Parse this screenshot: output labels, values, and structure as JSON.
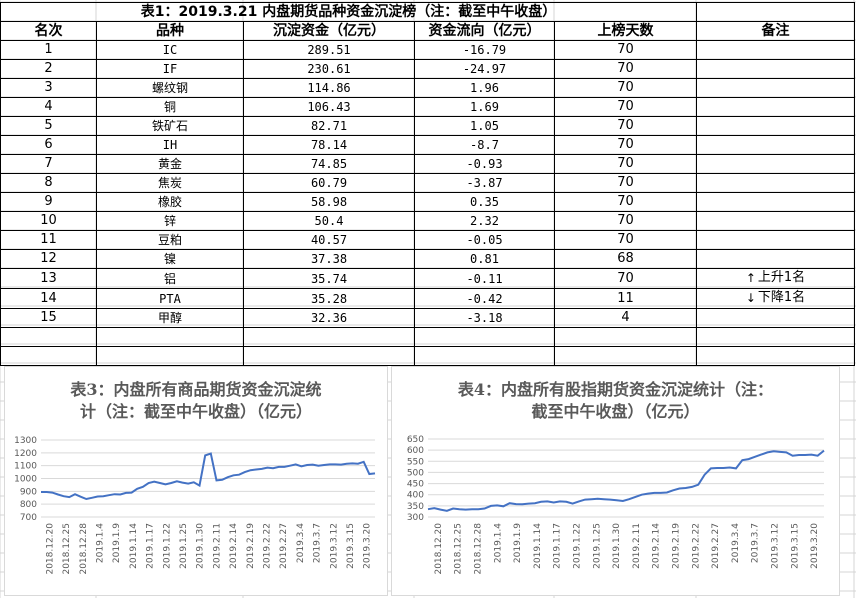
{
  "table": {
    "title": "表1：2019.3.21 内盘期货品种资金沉淀榜（注：截至中午收盘）",
    "headers": [
      "名次",
      "品种",
      "沉淀资金（亿元）",
      "资金流向（亿元）",
      "上榜天数",
      "备注"
    ],
    "rows": [
      [
        "1",
        "IC",
        "289.51",
        "-16.79",
        "70",
        ""
      ],
      [
        "2",
        "IF",
        "230.61",
        "-24.97",
        "70",
        ""
      ],
      [
        "3",
        "螺纹钢",
        "114.86",
        "1.96",
        "70",
        ""
      ],
      [
        "4",
        "铜",
        "106.43",
        "1.69",
        "70",
        ""
      ],
      [
        "5",
        "铁矿石",
        "82.71",
        "1.05",
        "70",
        ""
      ],
      [
        "6",
        "IH",
        "78.14",
        "-8.7",
        "70",
        ""
      ],
      [
        "7",
        "黄金",
        "74.85",
        "-0.93",
        "70",
        ""
      ],
      [
        "8",
        "焦炭",
        "60.79",
        "-3.87",
        "70",
        ""
      ],
      [
        "9",
        "橡胶",
        "58.98",
        "0.35",
        "70",
        ""
      ],
      [
        "10",
        "锌",
        "50.4",
        "2.32",
        "70",
        ""
      ],
      [
        "11",
        "豆粕",
        "40.57",
        "-0.05",
        "70",
        ""
      ],
      [
        "12",
        "镍",
        "37.38",
        "0.81",
        "68",
        ""
      ],
      [
        "13",
        "铝",
        "35.74",
        "-0.11",
        "70",
        "上升1名"
      ],
      [
        "14",
        "PTA",
        "35.28",
        "-0.42",
        "11",
        "下降1名"
      ],
      [
        "15",
        "甲醇",
        "32.36",
        "-3.18",
        "4",
        ""
      ]
    ],
    "note_arrows": {
      "up": "↑",
      "down": "↓"
    }
  },
  "chart_data": [
    {
      "type": "line",
      "title": "表3：内盘所有商品期货资金沉淀统计（注：截至中午收盘）（亿元）",
      "title_lines": [
        "表3：内盘所有商品期货资金沉淀统",
        "计（注：截至中午收盘）（亿元）"
      ],
      "ylim": [
        700,
        1300
      ],
      "yticks": [
        700,
        800,
        900,
        1000,
        1100,
        1200,
        1300
      ],
      "xticks": [
        "2018.12.20",
        "2018.12.25",
        "2018.12.28",
        "2019.1.4",
        "2019.1.9",
        "2019.1.14",
        "2019.1.17",
        "2019.1.22",
        "2019.1.25",
        "2019.1.30",
        "2019.2.11",
        "2019.2.14",
        "2019.2.19",
        "2019.2.22",
        "2019.2.27",
        "2019.3.4",
        "2019.3.7",
        "2019.3.12",
        "2019.3.15",
        "2019.3.20"
      ],
      "values": [
        895,
        895,
        890,
        875,
        862,
        855,
        878,
        858,
        840,
        850,
        860,
        862,
        870,
        878,
        875,
        888,
        890,
        920,
        935,
        965,
        975,
        965,
        955,
        965,
        978,
        968,
        960,
        970,
        945,
        1180,
        1195,
        985,
        990,
        1010,
        1025,
        1030,
        1050,
        1065,
        1070,
        1075,
        1085,
        1080,
        1090,
        1090,
        1100,
        1110,
        1095,
        1105,
        1108,
        1100,
        1105,
        1110,
        1110,
        1108,
        1115,
        1118,
        1115,
        1130,
        1035,
        1040
      ],
      "grid": true,
      "color": "#4472c4"
    },
    {
      "type": "line",
      "title": "表4：内盘所有股指期货资金沉淀统计（注：截至中午收盘）（亿元）",
      "title_lines": [
        "表4：内盘所有股指期货资金沉淀统计（注：",
        "截至中午收盘）（亿元）"
      ],
      "ylim": [
        300,
        650
      ],
      "yticks": [
        300,
        350,
        400,
        450,
        500,
        550,
        600,
        650
      ],
      "xticks": [
        "2018.12.20",
        "2018.12.25",
        "2018.12.28",
        "2019.1.4",
        "2019.1.9",
        "2019.1.14",
        "2019.1.17",
        "2019.1.22",
        "2019.1.25",
        "2019.1.30",
        "2019.2.11",
        "2019.2.14",
        "2019.2.19",
        "2019.2.22",
        "2019.2.27",
        "2019.3.4",
        "2019.3.7",
        "2019.3.12",
        "2019.3.15",
        "2019.3.20"
      ],
      "values": [
        335,
        340,
        333,
        328,
        338,
        335,
        333,
        335,
        335,
        338,
        350,
        352,
        348,
        362,
        358,
        357,
        360,
        362,
        368,
        370,
        365,
        370,
        368,
        360,
        370,
        378,
        380,
        382,
        380,
        378,
        375,
        372,
        380,
        390,
        400,
        405,
        408,
        408,
        410,
        420,
        428,
        430,
        435,
        445,
        490,
        518,
        520,
        520,
        522,
        518,
        555,
        560,
        570,
        580,
        590,
        595,
        592,
        590,
        575,
        578,
        578,
        580,
        575,
        598
      ],
      "grid": true,
      "color": "#4472c4"
    }
  ]
}
